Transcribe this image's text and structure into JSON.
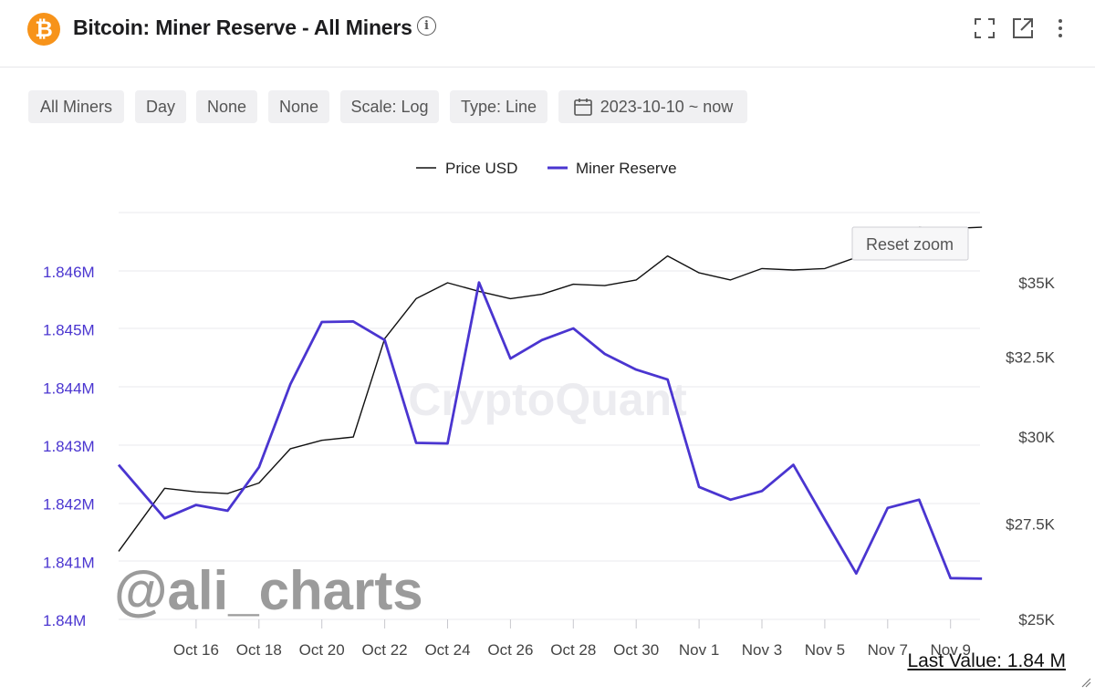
{
  "header": {
    "title": "Bitcoin: Miner Reserve - All Miners",
    "logo_glyph": "₿",
    "info_glyph": "i",
    "icons": [
      "fullscreen-icon",
      "external-link-icon",
      "more-vertical-icon"
    ]
  },
  "toolbar": {
    "items": [
      "All Miners",
      "Day",
      "None",
      "None",
      "Scale: Log",
      "Type: Line",
      "2023-10-10 ~ now"
    ]
  },
  "reset_zoom_label": "Reset zoom",
  "watermark": "CryptoQuant",
  "overlay_handle": "@ali_charts",
  "last_value_text": "Last Value: 1.84 M",
  "colors": {
    "miner_reserve": "#4a35d0",
    "price": "#111111",
    "bitcoin": "#f7931a",
    "grid": "#e8e8ec",
    "left_axis_text": "#4a35d0"
  },
  "chart_data": {
    "type": "line",
    "x": [
      "Oct 14",
      "Oct 15",
      "Oct 16",
      "Oct 17",
      "Oct 18",
      "Oct 19",
      "Oct 20",
      "Oct 21",
      "Oct 22",
      "Oct 23",
      "Oct 24",
      "Oct 25",
      "Oct 26",
      "Oct 27",
      "Oct 28",
      "Oct 29",
      "Oct 30",
      "Oct 31",
      "Nov 1",
      "Nov 2",
      "Nov 3",
      "Nov 4",
      "Nov 5",
      "Nov 6",
      "Nov 7",
      "Nov 8",
      "Nov 9",
      "Nov 10"
    ],
    "x_tick_labels": [
      "Oct 16",
      "Oct 18",
      "Oct 20",
      "Oct 22",
      "Oct 24",
      "Oct 26",
      "Oct 28",
      "Oct 30",
      "Nov 1",
      "Nov 3",
      "Nov 5",
      "Nov 7",
      "Nov 9"
    ],
    "series": [
      {
        "name": "Price USD",
        "axis": "right",
        "values": [
          26760,
          28500,
          28400,
          28350,
          28650,
          29650,
          29900,
          30000,
          33100,
          34450,
          35000,
          34700,
          34450,
          34600,
          34950,
          34900,
          35100,
          35950,
          35350,
          35100,
          35500,
          35450,
          35500,
          35900,
          36200,
          37000,
          36950,
          37000
        ]
      },
      {
        "name": "Miner Reserve",
        "axis": "left",
        "values": [
          1842660,
          1841740,
          1841970,
          1841870,
          1842620,
          1844050,
          1845120,
          1845130,
          1844810,
          1843040,
          1843030,
          1845800,
          1844490,
          1844810,
          1845010,
          1844570,
          1844300,
          1844130,
          1842280,
          1842060,
          1842210,
          1842660,
          1841720,
          1840790,
          1841920,
          1842060,
          1840710,
          1840700
        ]
      }
    ],
    "left_axis": {
      "ticks": [
        "1.84M",
        "1.841M",
        "1.842M",
        "1.843M",
        "1.844M",
        "1.845M",
        "1.846M"
      ],
      "range": [
        1840000,
        1846000
      ]
    },
    "right_axis": {
      "ticks": [
        "$25K",
        "$27.5K",
        "$30K",
        "$32.5K",
        "$35K"
      ],
      "scale": "log"
    },
    "legend": [
      "Price USD",
      "Miner Reserve"
    ],
    "legend_position": "top-center",
    "grid": true
  }
}
